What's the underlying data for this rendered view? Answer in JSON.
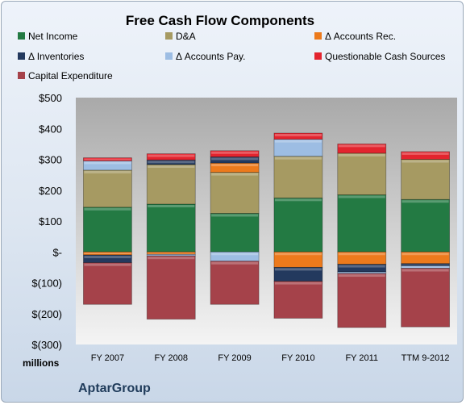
{
  "chart_data": {
    "type": "bar",
    "stacked": true,
    "title": "Free Cash Flow Components",
    "categories": [
      "FY 2007",
      "FY 2008",
      "FY 2009",
      "FY 2010",
      "FY 2011",
      "TTM 9-2012"
    ],
    "ylim": [
      -300,
      500
    ],
    "yticks": [
      -300,
      -200,
      -100,
      0,
      100,
      200,
      300,
      400,
      500
    ],
    "ytick_labels": [
      "$(300)",
      "$(200)",
      "$(100)",
      "$-",
      "$100",
      "$200",
      "$300",
      "$400",
      "$500"
    ],
    "unit_label": "millions",
    "legend_position": "top",
    "grid": false,
    "series": [
      {
        "name": "Net Income",
        "color": "#237a43",
        "values": [
          145,
          155,
          125,
          175,
          185,
          170
        ]
      },
      {
        "name": "D&A",
        "color": "#a69a62",
        "values": [
          120,
          128,
          133,
          135,
          135,
          130
        ]
      },
      {
        "name": "Δ Accounts Rec.",
        "color": "#ec7a1c",
        "values": [
          -10,
          -8,
          30,
          -50,
          -40,
          -38
        ]
      },
      {
        "name": "Δ Inventories",
        "color": "#23395e",
        "values": [
          -25,
          15,
          20,
          -45,
          -25,
          -7
        ]
      },
      {
        "name": "Δ Accounts Pay.",
        "color": "#9dbde3",
        "values": [
          30,
          -5,
          -30,
          55,
          -5,
          -8
        ]
      },
      {
        "name": "Questionable Cash Sources",
        "color": "#e3242e",
        "values": [
          10,
          20,
          20,
          20,
          30,
          25
        ]
      },
      {
        "name": "Capital Expenditure",
        "color": "#a5424a",
        "values": [
          -135,
          -205,
          -140,
          -120,
          -175,
          -190
        ]
      }
    ]
  },
  "footer": {
    "company": "AptarGroup"
  }
}
